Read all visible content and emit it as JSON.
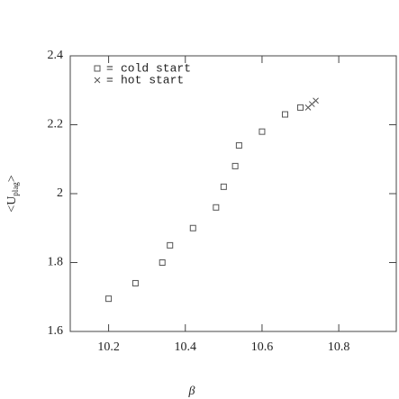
{
  "chart_data": {
    "type": "scatter",
    "xlabel": "β",
    "ylabel": "<U",
    "ylabel_sub": "plag",
    "ylabel_end": ">",
    "legend_sep": "=",
    "xlim": [
      10.1,
      10.95
    ],
    "ylim": [
      1.6,
      2.4
    ],
    "xticks": [
      10.2,
      10.4,
      10.6,
      10.8
    ],
    "yticks": [
      1.6,
      1.8,
      2,
      2.2,
      2.4
    ],
    "series": [
      {
        "name": "cold start",
        "marker": "square",
        "color": "#555555",
        "x": [
          10.2,
          10.27,
          10.34,
          10.36,
          10.42,
          10.48,
          10.5,
          10.53,
          10.54,
          10.6,
          10.66,
          10.7
        ],
        "values": [
          1.695,
          1.74,
          1.8,
          1.85,
          1.9,
          1.96,
          2.02,
          2.08,
          2.14,
          2.18,
          2.23,
          2.25
        ]
      },
      {
        "name": "hot start",
        "marker": "x",
        "color": "#555555",
        "x": [
          10.72,
          10.73,
          10.74
        ],
        "values": [
          2.25,
          2.26,
          2.27
        ]
      }
    ]
  }
}
